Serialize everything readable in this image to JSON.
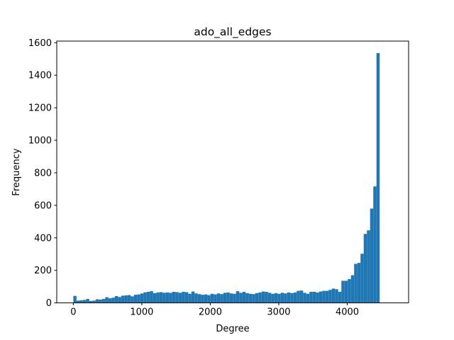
{
  "chart_data": {
    "type": "bar",
    "title": "ado_all_edges",
    "xlabel": "Degree",
    "ylabel": "Frequency",
    "xlim": [
      -242,
      4896
    ],
    "ylim": [
      0,
      1610
    ],
    "bin_start": 0,
    "bin_width": 46.6,
    "xticks": [
      0,
      1000,
      2000,
      3000,
      4000
    ],
    "yticks": [
      0,
      200,
      400,
      600,
      800,
      1000,
      1200,
      1400,
      1600
    ],
    "bar_color": "#1f77b4",
    "grid": false,
    "values": [
      43,
      14,
      16,
      18,
      24,
      12,
      14,
      22,
      20,
      24,
      35,
      28,
      32,
      42,
      36,
      44,
      46,
      48,
      40,
      50,
      52,
      58,
      65,
      68,
      72,
      60,
      64,
      66,
      62,
      64,
      62,
      68,
      66,
      62,
      68,
      66,
      56,
      70,
      58,
      54,
      50,
      52,
      48,
      56,
      52,
      58,
      54,
      62,
      64,
      58,
      56,
      72,
      62,
      68,
      60,
      56,
      54,
      60,
      64,
      70,
      68,
      62,
      56,
      60,
      56,
      62,
      58,
      64,
      60,
      64,
      74,
      76,
      62,
      56,
      68,
      68,
      64,
      70,
      74,
      74,
      80,
      88,
      84,
      68,
      136,
      136,
      146,
      170,
      240,
      246,
      302,
      424,
      446,
      580,
      716,
      1536
    ]
  }
}
